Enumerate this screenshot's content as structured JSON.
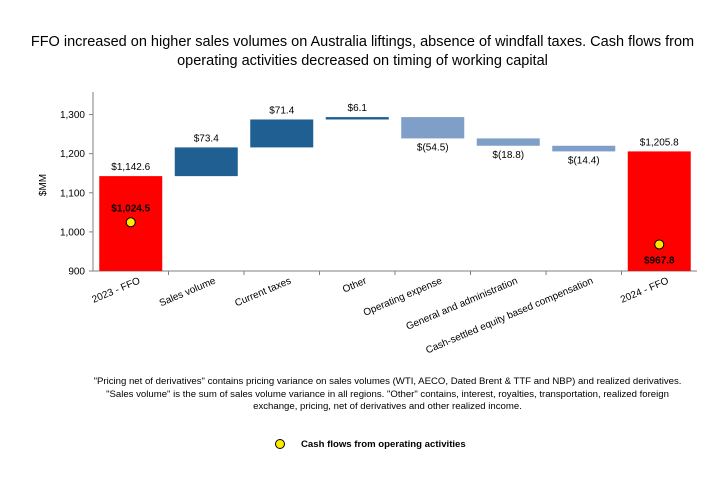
{
  "title_line1": "FFO increased on higher sales volumes on Australia liftings, absence of windfall taxes. Cash flows from",
  "title_line2": "operating activities decreased on timing of working capital",
  "chart_data": {
    "type": "bar",
    "subtype": "waterfall",
    "ylabel": "$MM",
    "ylim": [
      900,
      1350
    ],
    "yticks": [
      900,
      1000,
      1100,
      1200,
      1300
    ],
    "ytick_labels": [
      "900",
      "1,000",
      "1,100",
      "1,200",
      "1,300"
    ],
    "categories": [
      "2023 - FFO",
      "Sales volume",
      "Current taxes",
      "Other",
      "Operating expense",
      "General and administration",
      "Cash-settled equity based compensation",
      "2024 - FFO"
    ],
    "values": [
      1142.6,
      73.4,
      71.4,
      6.1,
      -54.5,
      -18.8,
      -14.4,
      1205.8
    ],
    "kinds": [
      "total",
      "delta",
      "delta",
      "delta",
      "delta",
      "delta",
      "delta",
      "total"
    ],
    "value_labels": [
      "$1,142.6",
      "$73.4",
      "$71.4",
      "$6.1",
      "$(54.5)",
      "$(18.8)",
      "$(14.4)",
      "$1,205.8"
    ],
    "colors": {
      "total": "#ff0000",
      "increase": "#1f5f91",
      "decrease": "#7f9ec8",
      "marker": "#ffeb00"
    },
    "cash_flow_series": {
      "name": "Cash flows from operating activities",
      "points": [
        {
          "category": "2023 - FFO",
          "value": 1024.5,
          "label": "$1,024.5"
        },
        {
          "category": "2024 - FFO",
          "value": 967.8,
          "label": "$967.8"
        }
      ]
    }
  },
  "footnote_line1": "\"Pricing net of derivatives\" contains pricing variance on sales volumes (WTI, AECO, Dated Brent & TTF and NBP) and realized derivatives.",
  "footnote_line2": "\"Sales volume\" is the sum of sales volume variance in all regions. \"Other\" contains, interest, royalties, transportation, realized foreign",
  "footnote_line3": "exchange, pricing, net of derivatives and other realized income.",
  "legend_label": "Cash flows from operating activities"
}
